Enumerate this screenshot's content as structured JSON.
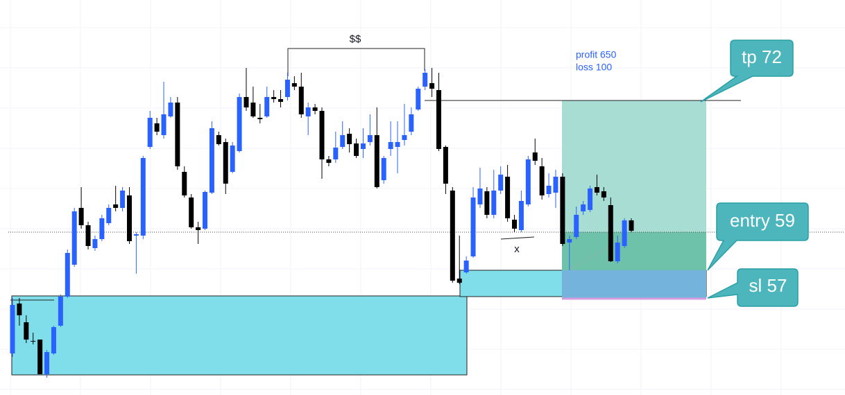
{
  "chart_data": {
    "type": "candlestick",
    "ylim": [
      0,
      57
    ],
    "grid": true,
    "up_color": "#2962ff",
    "down_color": "#000000",
    "open": [
      6.0,
      13.2,
      10.5,
      7.8,
      8.0,
      3.0,
      6.0,
      10.0,
      14.2,
      18.8,
      27.0,
      24.5,
      21.2,
      22.5,
      24.8,
      27.5,
      27.0,
      28.8,
      23.0,
      23.0,
      35.8,
      39.2,
      37.5,
      40.2,
      42.2,
      32.2,
      28.5,
      24.2,
      24.0,
      29.2,
      37.5,
      36.5,
      32.2,
      35.2,
      43.0,
      42.2,
      40.0,
      40.2,
      43.0,
      42.7,
      43.0,
      45.0,
      44.5,
      40.2,
      41.5,
      41.0,
      34.0,
      34.0,
      35.8,
      37.7,
      36.3,
      35.5,
      36.5,
      37.5,
      31.0,
      35.5,
      35.8,
      36.8,
      38.0,
      41.2,
      44.5,
      45.0,
      44.0,
      35.8,
      29.5,
      16.8,
      17.7,
      20.0,
      27.5,
      29.4,
      26.0,
      29.5,
      31.5,
      25.3,
      23.8,
      27.5,
      35.0,
      33.0,
      29.0,
      29.2,
      31.5,
      22.0,
      22.8,
      26.5,
      26.7,
      30.0,
      29.4,
      27.4,
      19.3,
      21.5,
      25.2
    ],
    "high": [
      14,
      14,
      11.5,
      9,
      8,
      6.5,
      10,
      14.5,
      21,
      27,
      30,
      25,
      23,
      26,
      27.5,
      30.2,
      30,
      30,
      23.5,
      34.5,
      41,
      40,
      45.2,
      43,
      43,
      33,
      29,
      25,
      29.5,
      39.5,
      38,
      37,
      36.5,
      43.5,
      47.2,
      44.5,
      42,
      44.5,
      44,
      44,
      46.5,
      46,
      46.5,
      42.2,
      42,
      41.5,
      34.5,
      38,
      39.5,
      38.5,
      37,
      38.5,
      40.5,
      41.5,
      34.5,
      39.5,
      39.5,
      42,
      41.5,
      44.5,
      47,
      47.2,
      46.5,
      36,
      30,
      23,
      20,
      30,
      32.8,
      30,
      32.5,
      33,
      33.2,
      26,
      29.5,
      34.5,
      37,
      34.2,
      32,
      32.5,
      32,
      23,
      27.2,
      28,
      30.2,
      31.8,
      30,
      28.5,
      23,
      25.5,
      25.5
    ],
    "low": [
      5.5,
      10,
      7.5,
      7.3,
      3,
      2.5,
      5.8,
      9.8,
      14,
      18.5,
      24,
      21,
      20.8,
      22.2,
      24.5,
      26.5,
      26.5,
      21.8,
      17.5,
      22.5,
      35.5,
      37.5,
      37,
      40,
      32.5,
      28.5,
      24,
      21.8,
      23.8,
      29,
      36,
      29,
      32,
      35,
      41,
      40,
      39.2,
      40,
      42.2,
      41.5,
      42.5,
      44,
      40,
      37.5,
      40.5,
      31.2,
      33,
      33.5,
      35.5,
      35,
      34.2,
      34.2,
      36,
      29.8,
      30.5,
      34.5,
      32,
      36,
      37.5,
      41,
      44,
      43,
      35.2,
      29,
      16.2,
      16,
      17.5,
      19.8,
      27,
      25.5,
      25.5,
      29,
      25,
      23.5,
      23.5,
      27.2,
      33.2,
      28.2,
      28.5,
      27,
      21.5,
      18,
      22.5,
      26,
      26.4,
      28.8,
      28,
      19.2,
      19,
      21.2,
      23.5
    ],
    "close": [
      13,
      11.5,
      8,
      7.7,
      3,
      6.2,
      9.8,
      14.2,
      20.5,
      26.5,
      24.5,
      21.5,
      22.5,
      25.5,
      27,
      27,
      29.5,
      22.2,
      23.2,
      34.2,
      40,
      38,
      40.5,
      42.2,
      33,
      28.8,
      24.2,
      23.8,
      29.3,
      38.5,
      36.2,
      30.5,
      36,
      43,
      41.5,
      40.2,
      39.8,
      43,
      42.7,
      42.3,
      45.5,
      44.5,
      40.5,
      41.5,
      41,
      34,
      33.5,
      35.7,
      37.5,
      36.2,
      34.5,
      36.3,
      37.5,
      30,
      34.2,
      36.5,
      36.5,
      37.5,
      40.5,
      44.2,
      46.5,
      44.2,
      35.5,
      30.5,
      16.5,
      16.2,
      19.4,
      28.5,
      29.8,
      26,
      29.5,
      31.8,
      25.5,
      24,
      28,
      34,
      33.8,
      28.8,
      30.2,
      31.5,
      21.8,
      22.5,
      26,
      27.5,
      29.8,
      29.2,
      28.5,
      19.3,
      22,
      25.2,
      23.7
    ],
    "annotations": {
      "bracket": "$$",
      "marker": "x",
      "profit": "profit 650",
      "loss": "loss 100",
      "tp": "tp 72",
      "entry": "entry 59",
      "sl": "sl 57"
    }
  }
}
